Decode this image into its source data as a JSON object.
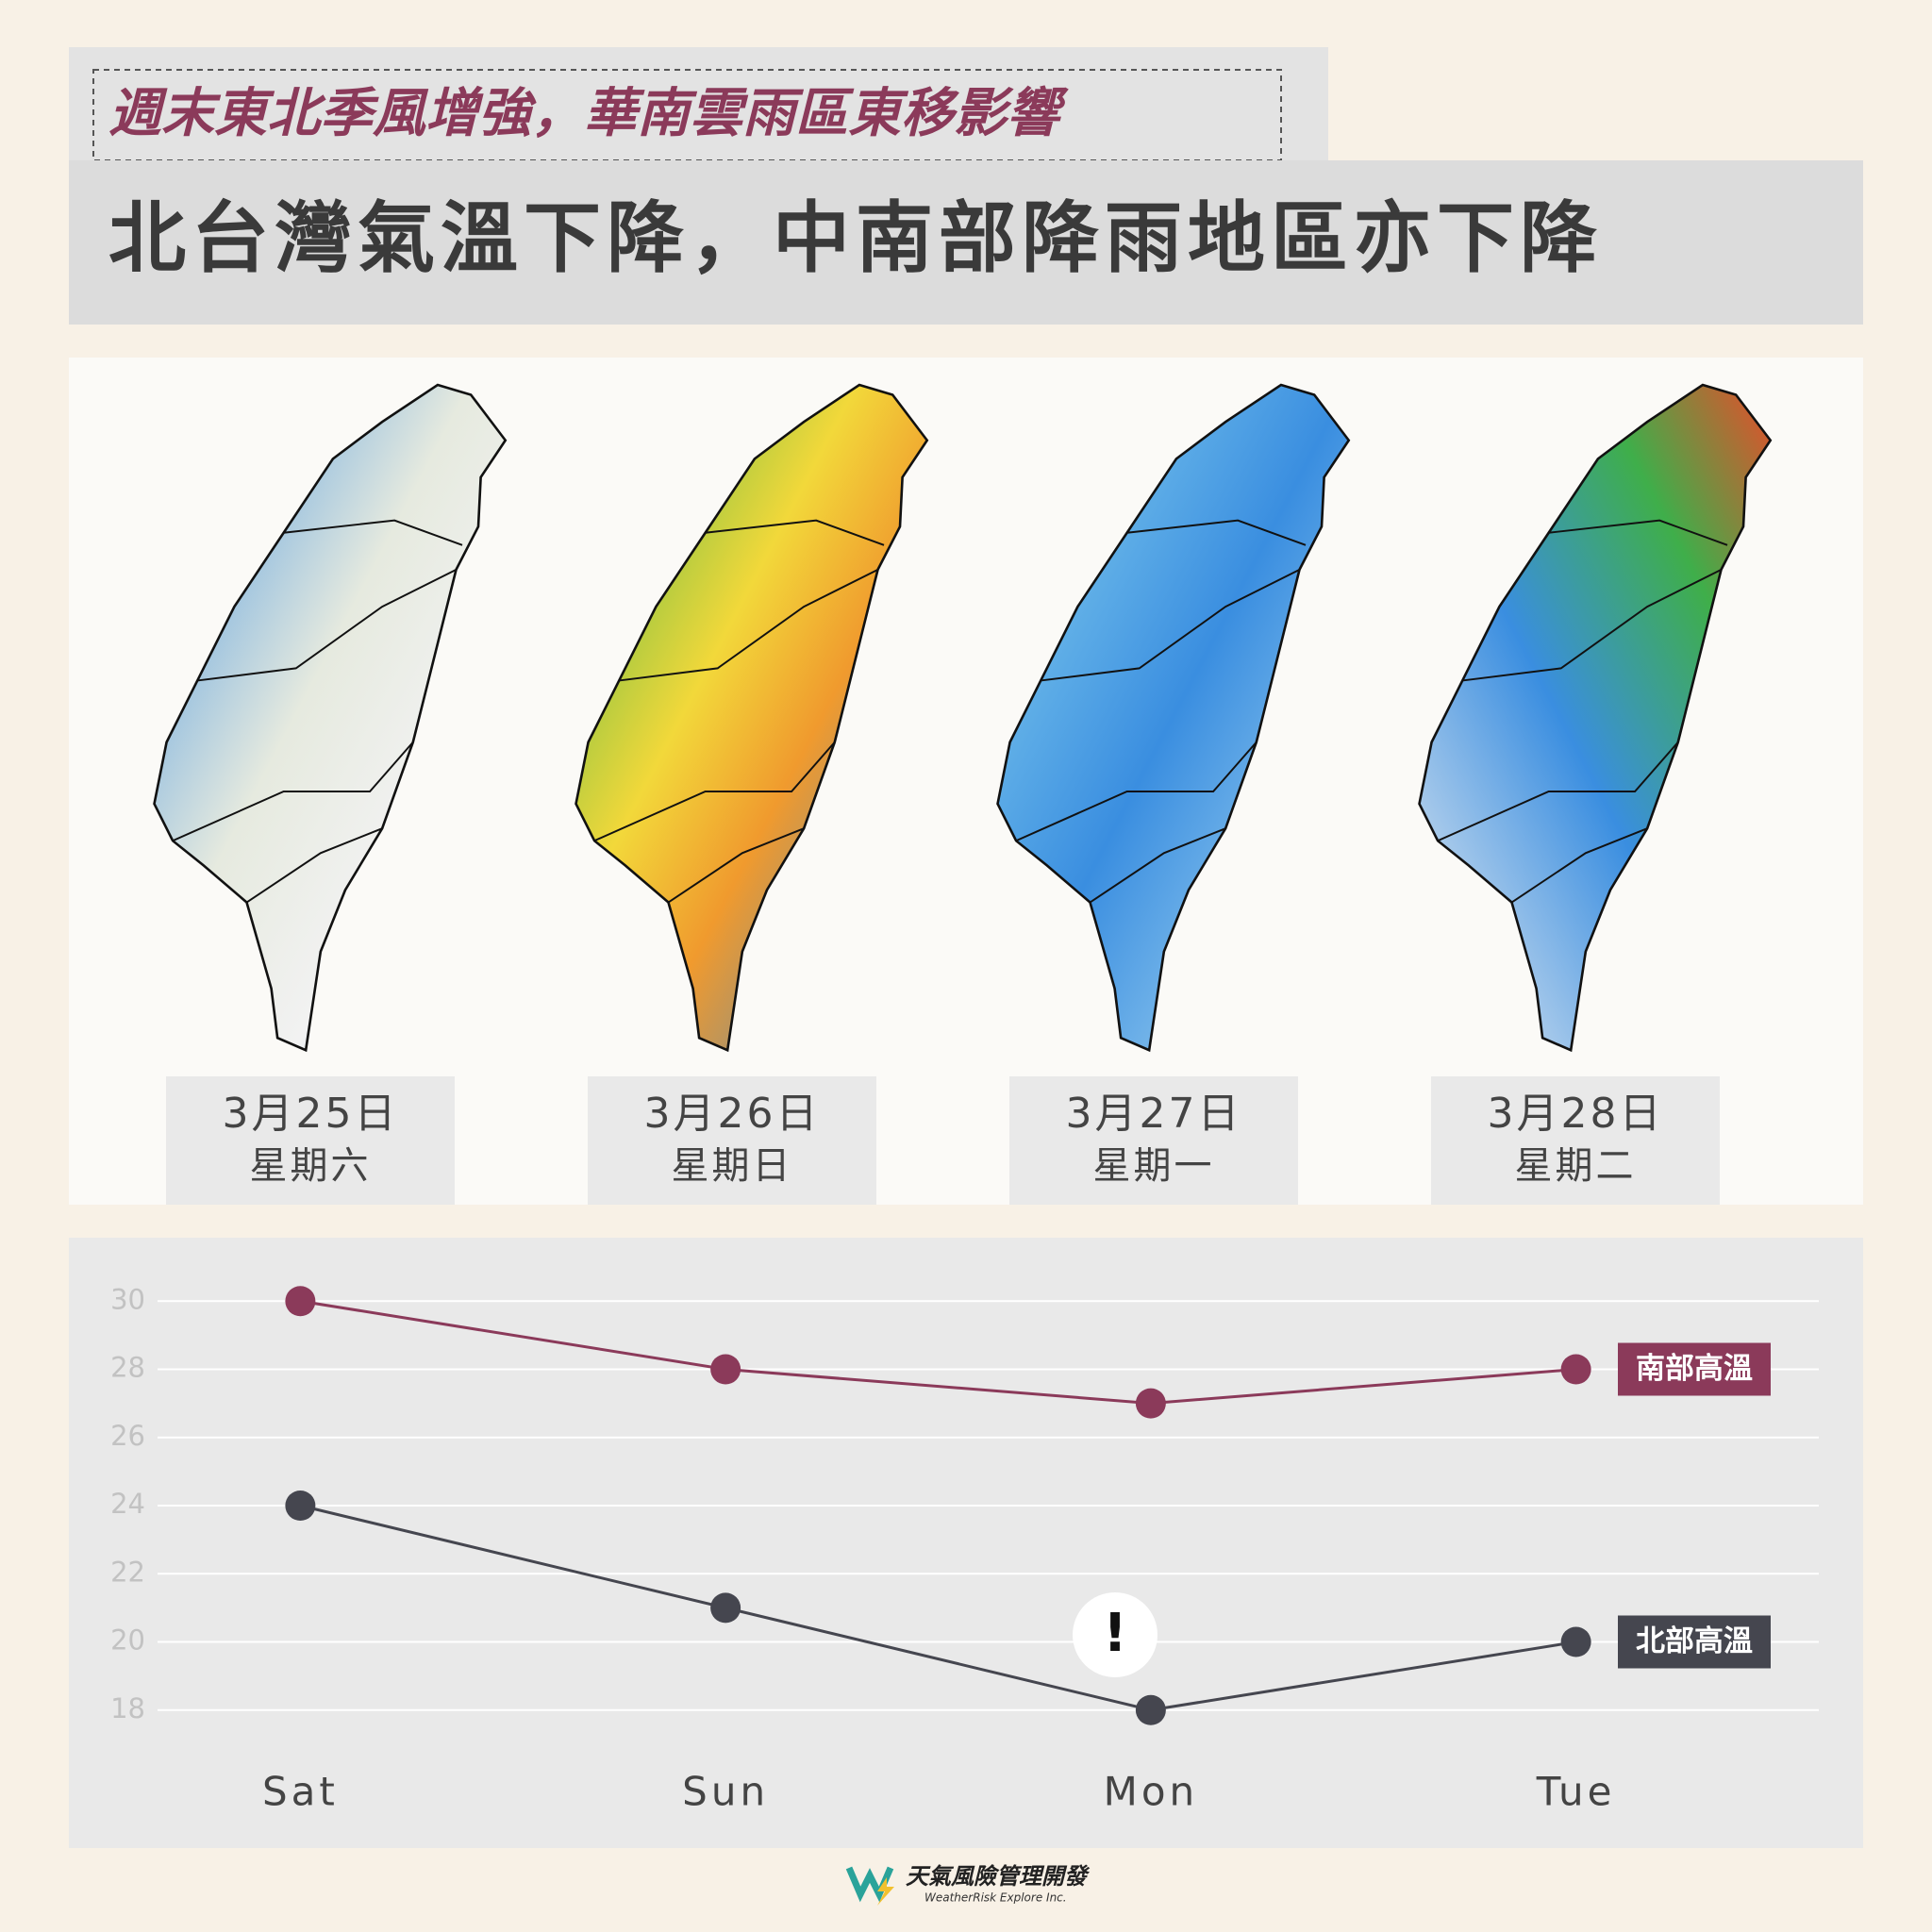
{
  "header": {
    "subtitle": "週末東北季風增強，華南雲雨區東移影響",
    "title": "北台灣氣溫下降，中南部降雨地區亦下降"
  },
  "maps": [
    {
      "date": "3月25日",
      "weekday": "星期六"
    },
    {
      "date": "3月26日",
      "weekday": "星期日"
    },
    {
      "date": "3月27日",
      "weekday": "星期一"
    },
    {
      "date": "3月28日",
      "weekday": "星期二"
    }
  ],
  "chart_data": {
    "type": "line",
    "categories": [
      "Sat",
      "Sun",
      "Mon",
      "Tue"
    ],
    "series": [
      {
        "name": "南部高溫",
        "color": "#8b3a5a",
        "values": [
          30,
          28,
          27,
          28
        ]
      },
      {
        "name": "北部高溫",
        "color": "#45464f",
        "values": [
          24,
          21,
          18,
          20
        ]
      }
    ],
    "ylim": [
      16,
      32
    ],
    "yticks": [
      18,
      20,
      22,
      24,
      26,
      28,
      30
    ],
    "grid": true,
    "annotation": "!"
  },
  "footer": {
    "company": "天氣風險管理開發",
    "company_en": "WeatherRisk Explore Inc."
  }
}
